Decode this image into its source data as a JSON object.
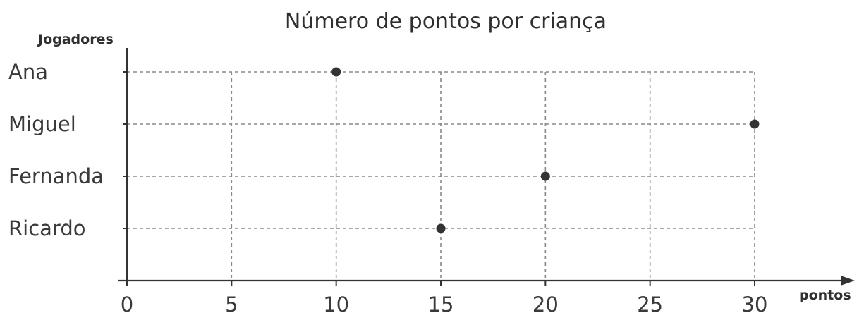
{
  "chart_data": {
    "type": "scatter",
    "title": "Número de pontos por criança",
    "xlabel": "pontos",
    "ylabel": "Jogadores",
    "categories": [
      "Ana",
      "Miguel",
      "Fernanda",
      "Ricardo"
    ],
    "values": [
      10,
      30,
      20,
      15
    ],
    "x_ticks": [
      "0",
      "5",
      "10",
      "15",
      "20",
      "25",
      "30"
    ],
    "xlim": [
      0,
      30
    ],
    "grid": true,
    "colors": {
      "point": "#333333",
      "axis": "#333333",
      "grid": "#8a8a8a"
    }
  }
}
